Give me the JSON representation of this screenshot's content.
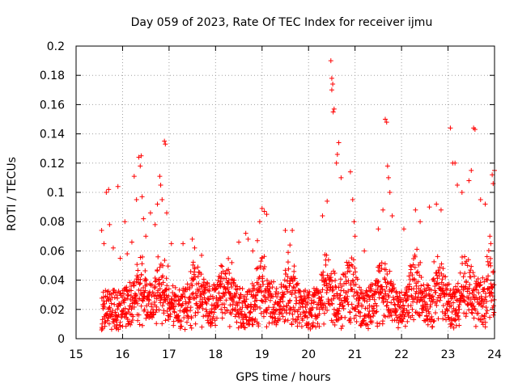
{
  "chart_data": {
    "type": "scatter",
    "title": "Day 059 of 2023, Rate Of TEC Index for receiver ijmu",
    "xlabel": "GPS time / hours",
    "ylabel": "ROTI / TECUs",
    "xlim": [
      15,
      24
    ],
    "ylim": [
      0,
      0.2
    ],
    "xticks": [
      "15",
      "16",
      "17",
      "18",
      "19",
      "20",
      "21",
      "22",
      "23",
      "24"
    ],
    "yticks": [
      "0",
      "0.02",
      "0.04",
      "0.06",
      "0.08",
      "0.1",
      "0.12",
      "0.14",
      "0.16",
      "0.18",
      "0.2"
    ],
    "grid": true,
    "marker": "plus",
    "color": "#ff0000",
    "series": [
      {
        "name": "ROTI",
        "points": [
          [
            15.55,
            0.074
          ],
          [
            15.6,
            0.065
          ],
          [
            15.65,
            0.1
          ],
          [
            15.7,
            0.102
          ],
          [
            15.72,
            0.078
          ],
          [
            15.8,
            0.062
          ],
          [
            15.9,
            0.104
          ],
          [
            15.95,
            0.055
          ],
          [
            16.05,
            0.08
          ],
          [
            16.1,
            0.058
          ],
          [
            16.2,
            0.066
          ],
          [
            16.25,
            0.111
          ],
          [
            16.3,
            0.095
          ],
          [
            16.35,
            0.124
          ],
          [
            16.38,
            0.118
          ],
          [
            16.4,
            0.125
          ],
          [
            16.42,
            0.097
          ],
          [
            16.45,
            0.082
          ],
          [
            16.5,
            0.07
          ],
          [
            16.6,
            0.086
          ],
          [
            16.7,
            0.078
          ],
          [
            16.75,
            0.092
          ],
          [
            16.8,
            0.111
          ],
          [
            16.82,
            0.105
          ],
          [
            16.85,
            0.095
          ],
          [
            16.9,
            0.135
          ],
          [
            16.92,
            0.133
          ],
          [
            16.95,
            0.086
          ],
          [
            17.05,
            0.065
          ],
          [
            17.3,
            0.065
          ],
          [
            17.5,
            0.068
          ],
          [
            17.55,
            0.062
          ],
          [
            17.7,
            0.057
          ],
          [
            18.1,
            0.042
          ],
          [
            18.35,
            0.052
          ],
          [
            18.5,
            0.066
          ],
          [
            18.65,
            0.072
          ],
          [
            18.7,
            0.068
          ],
          [
            18.8,
            0.06
          ],
          [
            18.9,
            0.067
          ],
          [
            18.95,
            0.08
          ],
          [
            19.0,
            0.089
          ],
          [
            19.05,
            0.087
          ],
          [
            19.1,
            0.085
          ],
          [
            19.5,
            0.074
          ],
          [
            19.6,
            0.064
          ],
          [
            19.65,
            0.074
          ],
          [
            20.3,
            0.084
          ],
          [
            20.4,
            0.094
          ],
          [
            20.48,
            0.19
          ],
          [
            20.5,
            0.178
          ],
          [
            20.52,
            0.174
          ],
          [
            20.5,
            0.17
          ],
          [
            20.55,
            0.157
          ],
          [
            20.53,
            0.155
          ],
          [
            20.6,
            0.12
          ],
          [
            20.62,
            0.126
          ],
          [
            20.65,
            0.134
          ],
          [
            20.7,
            0.11
          ],
          [
            20.9,
            0.114
          ],
          [
            20.95,
            0.095
          ],
          [
            20.98,
            0.08
          ],
          [
            21.0,
            0.07
          ],
          [
            21.2,
            0.06
          ],
          [
            21.5,
            0.075
          ],
          [
            21.6,
            0.088
          ],
          [
            21.65,
            0.15
          ],
          [
            21.68,
            0.148
          ],
          [
            21.7,
            0.118
          ],
          [
            21.72,
            0.11
          ],
          [
            21.75,
            0.1
          ],
          [
            21.8,
            0.084
          ],
          [
            22.05,
            0.075
          ],
          [
            22.3,
            0.088
          ],
          [
            22.4,
            0.08
          ],
          [
            22.6,
            0.09
          ],
          [
            22.75,
            0.092
          ],
          [
            22.85,
            0.088
          ],
          [
            23.05,
            0.144
          ],
          [
            23.1,
            0.12
          ],
          [
            23.15,
            0.12
          ],
          [
            23.2,
            0.105
          ],
          [
            23.3,
            0.1
          ],
          [
            23.45,
            0.108
          ],
          [
            23.5,
            0.115
          ],
          [
            23.55,
            0.144
          ],
          [
            23.58,
            0.143
          ],
          [
            23.7,
            0.095
          ],
          [
            23.8,
            0.092
          ],
          [
            23.9,
            0.07
          ],
          [
            23.95,
            0.112
          ],
          [
            24.0,
            0.115
          ],
          [
            23.97,
            0.106
          ],
          [
            23.92,
            0.065
          ]
        ]
      }
    ],
    "background_band": "dense ROTI values mostly between 0.005 and 0.04 TECU/min from 15.55 h to 24 h"
  }
}
